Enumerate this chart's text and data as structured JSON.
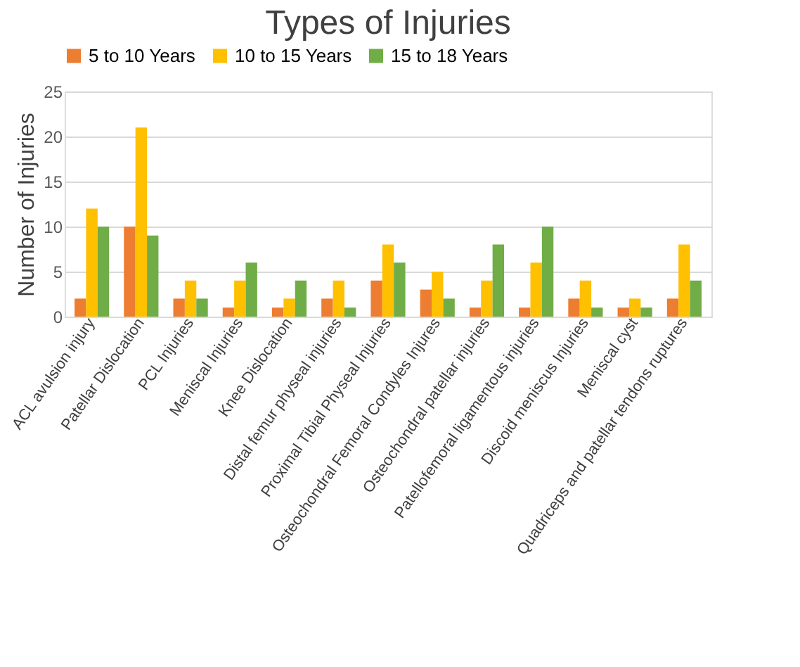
{
  "chart_data": {
    "type": "bar",
    "title": "Types of Injuries",
    "ylabel": "Number of Injuries",
    "categories": [
      "ACL avulsion injury",
      "Patellar Dislocation",
      "PCL Injuries",
      "Meniscal Injuries",
      "Knee Dislocation",
      "Distal femur physeal injuries",
      "Proximal Tibial Physeal Injuries",
      "Osteochondral Femoral Condyles Injures",
      "Osteochondral patellar injuries",
      "Patellofemoral ligamentous injuries",
      "Discoid meniscus Injuries",
      "Meniscal cyst",
      "Quadriceps and patellar tendons ruptures"
    ],
    "series": [
      {
        "name": "5 to 10 Years",
        "color": "#ed7d31",
        "values": [
          2,
          10,
          2,
          1,
          1,
          2,
          4,
          3,
          1,
          1,
          2,
          1,
          2
        ]
      },
      {
        "name": "10 to 15 Years",
        "color": "#ffc000",
        "values": [
          12,
          21,
          4,
          4,
          2,
          4,
          8,
          5,
          4,
          6,
          4,
          2,
          8
        ]
      },
      {
        "name": "15 to 18 Years",
        "color": "#70ad47",
        "values": [
          10,
          9,
          2,
          6,
          4,
          1,
          6,
          2,
          8,
          10,
          1,
          1,
          4
        ]
      }
    ],
    "ylim": [
      0,
      25
    ],
    "yticks": [
      0,
      5,
      10,
      15,
      20,
      25
    ],
    "grid": "y",
    "legend": "top"
  }
}
